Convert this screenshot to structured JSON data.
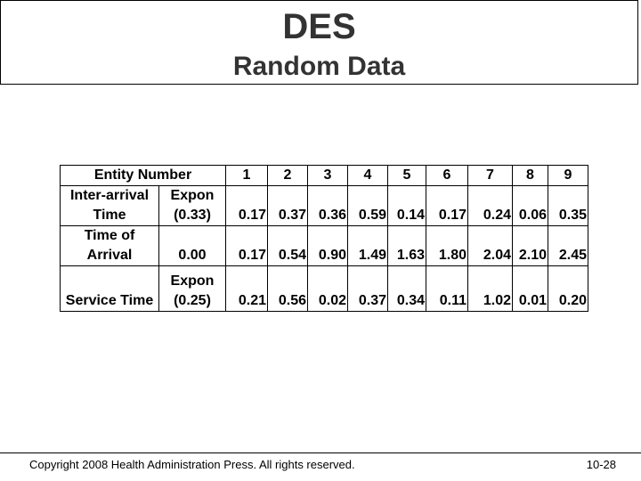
{
  "slide": {
    "title": "DES",
    "subtitle": "Random Data"
  },
  "table": {
    "header": {
      "label": "Entity Number",
      "entities": [
        "1",
        "2",
        "3",
        "4",
        "5",
        "6",
        "7",
        "8",
        "9"
      ]
    },
    "rows": [
      {
        "label": "Inter-arrival Time",
        "dist": "Expon (0.33)",
        "values": [
          "0.17",
          "0.37",
          "0.36",
          "0.59",
          "0.14",
          "0.17",
          "0.24",
          "0.06",
          "0.35"
        ]
      },
      {
        "label": "Time of Arrival",
        "dist": "0.00",
        "values": [
          "0.17",
          "0.54",
          "0.90",
          "1.49",
          "1.63",
          "1.80",
          "2.04",
          "2.10",
          "2.45"
        ]
      },
      {
        "label": "Service Time",
        "dist": "Expon (0.25)",
        "values": [
          "0.21",
          "0.56",
          "0.02",
          "0.37",
          "0.34",
          "0.11",
          "1.02",
          "0.01",
          "0.20"
        ]
      }
    ]
  },
  "footer": {
    "copyright": "Copyright 2008 Health Administration Press. All rights reserved.",
    "page": "10-28"
  }
}
